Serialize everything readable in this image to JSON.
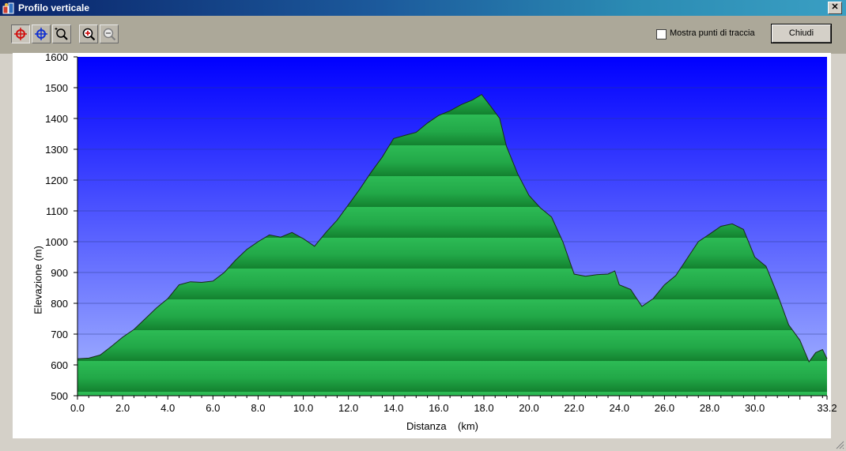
{
  "window": {
    "title": "Profilo verticale",
    "close_label": "✕"
  },
  "toolbar": {
    "tools": [
      {
        "name": "crosshair-red-tool",
        "active": true
      },
      {
        "name": "crosshair-blue-tool",
        "active": false
      },
      {
        "name": "zoom-area-tool",
        "active": false
      },
      {
        "name": "zoom-in-tool",
        "active": false
      },
      {
        "name": "zoom-out-tool",
        "active": false
      }
    ],
    "show_track_points_label": "Mostra punti di traccia",
    "show_track_points_checked": false,
    "close_button_label": "Chiudi"
  },
  "chart_data": {
    "type": "area",
    "xlabel": "Distanza    (km)",
    "ylabel": "Elevazione (m)",
    "xlim": [
      0,
      33.2
    ],
    "ylim": [
      500,
      1600
    ],
    "x_ticks": [
      0,
      2,
      4,
      6,
      8,
      10,
      12,
      14,
      16,
      18,
      20,
      22,
      24,
      26,
      28,
      30,
      33.2
    ],
    "x_tick_labels": [
      "0.0",
      "2.0",
      "4.0",
      "6.0",
      "8.0",
      "10.0",
      "12.0",
      "14.0",
      "16.0",
      "18.0",
      "20.0",
      "22.0",
      "24.0",
      "26.0",
      "28.0",
      "30.0",
      "33.2"
    ],
    "y_ticks": [
      500,
      600,
      700,
      800,
      900,
      1000,
      1100,
      1200,
      1300,
      1400,
      1500,
      1600
    ],
    "y_tick_labels": [
      "500",
      "600",
      "700",
      "800",
      "900",
      "1000",
      "1100",
      "1200",
      "1300",
      "1400",
      "1500",
      "1600"
    ],
    "grid": true,
    "colors": {
      "sky_top": "#0000ff",
      "sky_bottom": "#9fb0ff",
      "fill_light": "#2ec05a",
      "fill_dark": "#168a38",
      "outline": "#1a2a1a"
    },
    "x": [
      0,
      0.5,
      1.0,
      1.5,
      2.0,
      2.5,
      3.0,
      3.5,
      4.0,
      4.5,
      5.0,
      5.5,
      6.0,
      6.5,
      7.0,
      7.5,
      8.0,
      8.5,
      9.0,
      9.5,
      10.0,
      10.5,
      11.0,
      11.5,
      12.0,
      12.5,
      13.0,
      13.5,
      14.0,
      14.5,
      15.0,
      15.5,
      16.0,
      16.5,
      17.0,
      17.5,
      17.9,
      18.3,
      18.7,
      19.0,
      19.5,
      20.0,
      20.5,
      21.0,
      21.5,
      22.0,
      22.5,
      23.0,
      23.5,
      23.8,
      24.0,
      24.5,
      25.0,
      25.5,
      26.0,
      26.5,
      27.0,
      27.5,
      28.0,
      28.5,
      29.0,
      29.5,
      30.0,
      30.5,
      31.0,
      31.5,
      32.0,
      32.4,
      32.7,
      33.0,
      33.2
    ],
    "values": [
      620,
      622,
      632,
      660,
      690,
      715,
      750,
      785,
      815,
      860,
      870,
      868,
      872,
      900,
      940,
      975,
      1000,
      1022,
      1015,
      1030,
      1010,
      985,
      1030,
      1070,
      1120,
      1170,
      1225,
      1275,
      1335,
      1345,
      1355,
      1385,
      1410,
      1425,
      1445,
      1460,
      1478,
      1440,
      1400,
      1310,
      1220,
      1150,
      1110,
      1080,
      1000,
      895,
      888,
      893,
      895,
      905,
      860,
      845,
      790,
      815,
      860,
      890,
      945,
      1000,
      1025,
      1050,
      1058,
      1040,
      950,
      920,
      830,
      730,
      680,
      610,
      640,
      650,
      620
    ]
  }
}
